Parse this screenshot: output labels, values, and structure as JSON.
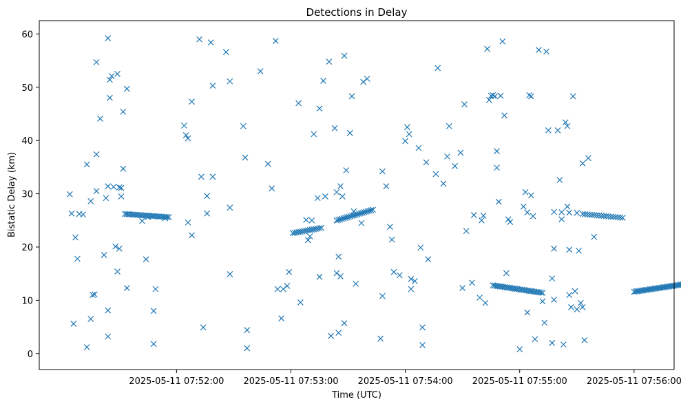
{
  "chart_data": {
    "type": "scatter",
    "title": "Detections in Delay",
    "xlabel": "Time (UTC)",
    "ylabel": "Bistatic Delay (km)",
    "x_unit": "seconds after 2025-05-11 07:51:00",
    "xlim": [
      -12,
      321
    ],
    "ylim": [
      -3,
      62.5
    ],
    "x_ticks": [
      {
        "value": 60,
        "label": "2025-05-11 07:52:00"
      },
      {
        "value": 120,
        "label": "2025-05-11 07:53:00"
      },
      {
        "value": 180,
        "label": "2025-05-11 07:54:00"
      },
      {
        "value": 240,
        "label": "2025-05-11 07:55:00"
      },
      {
        "value": 300,
        "label": "2025-05-11 07:56:00"
      }
    ],
    "y_ticks": [
      {
        "value": 0,
        "label": "0"
      },
      {
        "value": 10,
        "label": "10"
      },
      {
        "value": 20,
        "label": "20"
      },
      {
        "value": 30,
        "label": "30"
      },
      {
        "value": 40,
        "label": "40"
      },
      {
        "value": 50,
        "label": "50"
      },
      {
        "value": 60,
        "label": "60"
      }
    ],
    "marker": "x",
    "color": "#1f77b4",
    "tracks": [
      {
        "x_start": 33,
        "x_end": 56,
        "y_start": 26.2,
        "y_end": 25.6,
        "count": 28
      },
      {
        "x_start": 121,
        "x_end": 136,
        "y_start": 22.6,
        "y_end": 23.6,
        "count": 16
      },
      {
        "x_start": 144,
        "x_end": 163,
        "y_start": 25.0,
        "y_end": 27.0,
        "count": 22
      },
      {
        "x_start": 226,
        "x_end": 252,
        "y_start": 12.8,
        "y_end": 11.4,
        "count": 30
      },
      {
        "x_start": 258,
        "x_end": 270,
        "y_start": 26.6,
        "y_end": 26.4,
        "count": 4
      },
      {
        "x_start": 273,
        "x_end": 294,
        "y_start": 26.2,
        "y_end": 25.5,
        "count": 18
      },
      {
        "x_start": 300,
        "x_end": 344,
        "y_start": 11.6,
        "y_end": 14.0,
        "count": 58
      }
    ],
    "points": [
      [
        4,
        29.9
      ],
      [
        5,
        26.3
      ],
      [
        6,
        5.6
      ],
      [
        7,
        21.8
      ],
      [
        8,
        17.8
      ],
      [
        9,
        26.2
      ],
      [
        11,
        26.1
      ],
      [
        13,
        1.2
      ],
      [
        13,
        35.5
      ],
      [
        15,
        28.6
      ],
      [
        15,
        6.5
      ],
      [
        16,
        11.0
      ],
      [
        17,
        11.1
      ],
      [
        18,
        54.7
      ],
      [
        18,
        37.4
      ],
      [
        18,
        30.5
      ],
      [
        20,
        44.1
      ],
      [
        22,
        18.5
      ],
      [
        23,
        29.2
      ],
      [
        24,
        59.2
      ],
      [
        24,
        8.1
      ],
      [
        24,
        3.2
      ],
      [
        24,
        31.4
      ],
      [
        25,
        48.0
      ],
      [
        25,
        51.4
      ],
      [
        26,
        52.1
      ],
      [
        27,
        31.3
      ],
      [
        28,
        20.1
      ],
      [
        29,
        52.5
      ],
      [
        29,
        15.4
      ],
      [
        30,
        19.7
      ],
      [
        30,
        31.2
      ],
      [
        31,
        29.5
      ],
      [
        31,
        31.1
      ],
      [
        32,
        45.4
      ],
      [
        32,
        34.7
      ],
      [
        34,
        49.7
      ],
      [
        34,
        12.3
      ],
      [
        42,
        24.9
      ],
      [
        44,
        17.7
      ],
      [
        45,
        25.6
      ],
      [
        48,
        1.8
      ],
      [
        48,
        8.0
      ],
      [
        49,
        12.1
      ],
      [
        54,
        25.4
      ],
      [
        64,
        42.8
      ],
      [
        65,
        41.0
      ],
      [
        66,
        40.4
      ],
      [
        66,
        24.6
      ],
      [
        68,
        47.3
      ],
      [
        68,
        22.2
      ],
      [
        72,
        59.0
      ],
      [
        73,
        33.2
      ],
      [
        74,
        4.9
      ],
      [
        76,
        26.3
      ],
      [
        76,
        29.6
      ],
      [
        78,
        58.4
      ],
      [
        79,
        50.3
      ],
      [
        79,
        33.2
      ],
      [
        86,
        56.6
      ],
      [
        88,
        51.1
      ],
      [
        88,
        27.4
      ],
      [
        88,
        14.9
      ],
      [
        95,
        42.7
      ],
      [
        96,
        36.8
      ],
      [
        97,
        4.4
      ],
      [
        97,
        1.0
      ],
      [
        104,
        53.0
      ],
      [
        108,
        35.6
      ],
      [
        110,
        31.0
      ],
      [
        112,
        58.7
      ],
      [
        113,
        12.1
      ],
      [
        115,
        6.6
      ],
      [
        116,
        12.1
      ],
      [
        118,
        12.7
      ],
      [
        119,
        15.3
      ],
      [
        124,
        47.0
      ],
      [
        125,
        9.6
      ],
      [
        128,
        25.1
      ],
      [
        129,
        21.3
      ],
      [
        130,
        22.0
      ],
      [
        131,
        25.0
      ],
      [
        132,
        41.2
      ],
      [
        134,
        29.2
      ],
      [
        135,
        46.0
      ],
      [
        135,
        14.4
      ],
      [
        137,
        51.2
      ],
      [
        138,
        29.5
      ],
      [
        140,
        54.8
      ],
      [
        141,
        3.3
      ],
      [
        143,
        42.3
      ],
      [
        144,
        30.3
      ],
      [
        144,
        15.1
      ],
      [
        145,
        18.2
      ],
      [
        145,
        3.9
      ],
      [
        146,
        31.4
      ],
      [
        146,
        14.5
      ],
      [
        147,
        29.5
      ],
      [
        148,
        55.9
      ],
      [
        148,
        5.7
      ],
      [
        149,
        34.4
      ],
      [
        151,
        41.4
      ],
      [
        152,
        48.3
      ],
      [
        153,
        26.7
      ],
      [
        154,
        13.1
      ],
      [
        157,
        24.5
      ],
      [
        158,
        51.0
      ],
      [
        160,
        51.6
      ],
      [
        167,
        2.8
      ],
      [
        168,
        34.2
      ],
      [
        168,
        10.8
      ],
      [
        170,
        31.4
      ],
      [
        172,
        23.8
      ],
      [
        173,
        21.4
      ],
      [
        174,
        15.3
      ],
      [
        177,
        14.7
      ],
      [
        180,
        39.9
      ],
      [
        181,
        42.5
      ],
      [
        182,
        41.2
      ],
      [
        183,
        14.0
      ],
      [
        183,
        12.1
      ],
      [
        185,
        13.6
      ],
      [
        187,
        38.6
      ],
      [
        188,
        19.9
      ],
      [
        189,
        1.6
      ],
      [
        189,
        4.9
      ],
      [
        191,
        35.9
      ],
      [
        192,
        17.7
      ],
      [
        196,
        33.7
      ],
      [
        197,
        53.6
      ],
      [
        200,
        31.9
      ],
      [
        202,
        37.0
      ],
      [
        203,
        42.7
      ],
      [
        206,
        35.2
      ],
      [
        209,
        37.7
      ],
      [
        210,
        12.3
      ],
      [
        211,
        46.8
      ],
      [
        212,
        23.0
      ],
      [
        215,
        13.3
      ],
      [
        216,
        26.0
      ],
      [
        219,
        10.5
      ],
      [
        220,
        25.0
      ],
      [
        221,
        25.9
      ],
      [
        222,
        9.5
      ],
      [
        223,
        57.2
      ],
      [
        224,
        47.6
      ],
      [
        225,
        48.4
      ],
      [
        226,
        48.5
      ],
      [
        227,
        48.3
      ],
      [
        228,
        38.0
      ],
      [
        228,
        34.9
      ],
      [
        229,
        28.5
      ],
      [
        230,
        48.4
      ],
      [
        231,
        58.6
      ],
      [
        232,
        44.7
      ],
      [
        233,
        15.1
      ],
      [
        234,
        25.2
      ],
      [
        235,
        24.7
      ],
      [
        240,
        0.8
      ],
      [
        242,
        27.6
      ],
      [
        243,
        30.3
      ],
      [
        244,
        7.7
      ],
      [
        244,
        26.5
      ],
      [
        245,
        48.5
      ],
      [
        246,
        48.3
      ],
      [
        246,
        29.7
      ],
      [
        247,
        25.8
      ],
      [
        248,
        2.7
      ],
      [
        250,
        57.0
      ],
      [
        252,
        9.8
      ],
      [
        253,
        5.8
      ],
      [
        254,
        56.7
      ],
      [
        255,
        41.9
      ],
      [
        257,
        14.1
      ],
      [
        257,
        2.0
      ],
      [
        258,
        10.1
      ],
      [
        258,
        19.7
      ],
      [
        260,
        41.9
      ],
      [
        261,
        32.6
      ],
      [
        262,
        25.2
      ],
      [
        263,
        1.7
      ],
      [
        264,
        43.4
      ],
      [
        265,
        42.7
      ],
      [
        265,
        27.6
      ],
      [
        266,
        19.5
      ],
      [
        266,
        11.0
      ],
      [
        267,
        8.7
      ],
      [
        268,
        48.3
      ],
      [
        269,
        11.7
      ],
      [
        270,
        8.3
      ],
      [
        271,
        19.3
      ],
      [
        272,
        9.5
      ],
      [
        273,
        8.7
      ],
      [
        273,
        35.7
      ],
      [
        274,
        2.5
      ],
      [
        276,
        36.7
      ],
      [
        279,
        21.9
      ]
    ]
  }
}
